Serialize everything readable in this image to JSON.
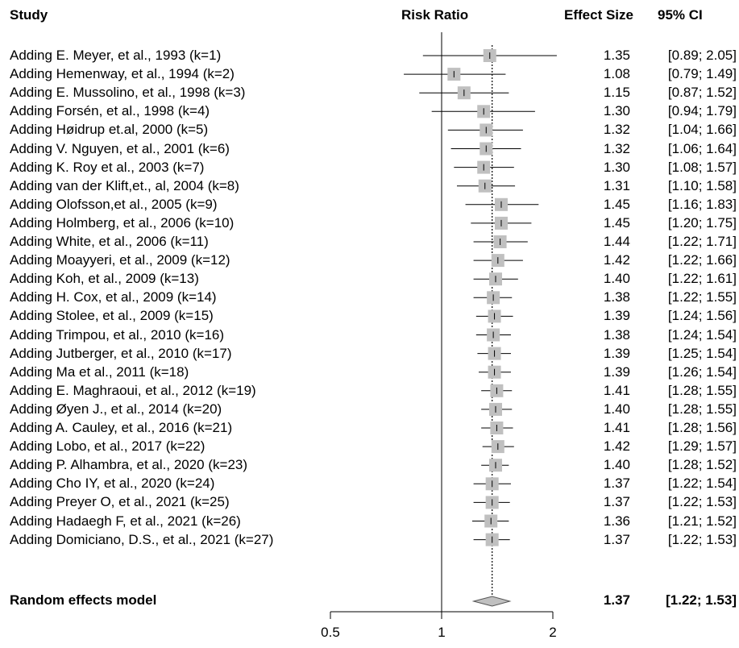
{
  "headers": {
    "study": "Study",
    "risk_ratio": "Risk Ratio",
    "effect_size": "Effect Size",
    "ci": "95% CI"
  },
  "chart_data": {
    "type": "forest",
    "scale": "log",
    "xlim": [
      0.5,
      2
    ],
    "x_ticks": [
      {
        "value": 0.5,
        "label": "0.5"
      },
      {
        "value": 1,
        "label": "1"
      },
      {
        "value": 2,
        "label": "2"
      }
    ],
    "null_line": 1,
    "pooled_line": 1.37,
    "studies": [
      {
        "label": "Adding E. Meyer, et al., 1993 (k=1)",
        "es": 1.35,
        "lo": 0.89,
        "hi": 2.05,
        "es_text": "1.35",
        "ci_text": "[0.89; 2.05]"
      },
      {
        "label": "Adding Hemenway, et al., 1994 (k=2)",
        "es": 1.08,
        "lo": 0.79,
        "hi": 1.49,
        "es_text": "1.08",
        "ci_text": "[0.79; 1.49]"
      },
      {
        "label": "Adding E. Mussolino, et al., 1998 (k=3)",
        "es": 1.15,
        "lo": 0.87,
        "hi": 1.52,
        "es_text": "1.15",
        "ci_text": "[0.87; 1.52]"
      },
      {
        "label": "Adding Forsén, et al., 1998 (k=4)",
        "es": 1.3,
        "lo": 0.94,
        "hi": 1.79,
        "es_text": "1.30",
        "ci_text": "[0.94; 1.79]"
      },
      {
        "label": "Adding Høidrup et.al, 2000 (k=5)",
        "es": 1.32,
        "lo": 1.04,
        "hi": 1.66,
        "es_text": "1.32",
        "ci_text": "[1.04; 1.66]"
      },
      {
        "label": "Adding V. Nguyen, et al., 2001 (k=6)",
        "es": 1.32,
        "lo": 1.06,
        "hi": 1.64,
        "es_text": "1.32",
        "ci_text": "[1.06; 1.64]"
      },
      {
        "label": "Adding K. Roy et al., 2003 (k=7)",
        "es": 1.3,
        "lo": 1.08,
        "hi": 1.57,
        "es_text": "1.30",
        "ci_text": "[1.08; 1.57]"
      },
      {
        "label": "Adding van der Klift,et., al, 2004 (k=8)",
        "es": 1.31,
        "lo": 1.1,
        "hi": 1.58,
        "es_text": "1.31",
        "ci_text": "[1.10; 1.58]"
      },
      {
        "label": "Adding Olofsson,et al., 2005 (k=9)",
        "es": 1.45,
        "lo": 1.16,
        "hi": 1.83,
        "es_text": "1.45",
        "ci_text": "[1.16; 1.83]"
      },
      {
        "label": "Adding Holmberg, et al., 2006 (k=10)",
        "es": 1.45,
        "lo": 1.2,
        "hi": 1.75,
        "es_text": "1.45",
        "ci_text": "[1.20; 1.75]"
      },
      {
        "label": "Adding White, et al., 2006 (k=11)",
        "es": 1.44,
        "lo": 1.22,
        "hi": 1.71,
        "es_text": "1.44",
        "ci_text": "[1.22; 1.71]"
      },
      {
        "label": "Adding Moayyeri, et al., 2009 (k=12)",
        "es": 1.42,
        "lo": 1.22,
        "hi": 1.66,
        "es_text": "1.42",
        "ci_text": "[1.22; 1.66]"
      },
      {
        "label": "Adding Koh, et al., 2009 (k=13)",
        "es": 1.4,
        "lo": 1.22,
        "hi": 1.61,
        "es_text": "1.40",
        "ci_text": "[1.22; 1.61]"
      },
      {
        "label": "Adding H. Cox, et al., 2009 (k=14)",
        "es": 1.38,
        "lo": 1.22,
        "hi": 1.55,
        "es_text": "1.38",
        "ci_text": "[1.22; 1.55]"
      },
      {
        "label": "Adding Stolee, et al., 2009 (k=15)",
        "es": 1.39,
        "lo": 1.24,
        "hi": 1.56,
        "es_text": "1.39",
        "ci_text": "[1.24; 1.56]"
      },
      {
        "label": "Adding Trimpou, et al., 2010 (k=16)",
        "es": 1.38,
        "lo": 1.24,
        "hi": 1.54,
        "es_text": "1.38",
        "ci_text": "[1.24; 1.54]"
      },
      {
        "label": "Adding Jutberger, et al., 2010 (k=17)",
        "es": 1.39,
        "lo": 1.25,
        "hi": 1.54,
        "es_text": "1.39",
        "ci_text": "[1.25; 1.54]"
      },
      {
        "label": "Adding Ma et al., 2011 (k=18)",
        "es": 1.39,
        "lo": 1.26,
        "hi": 1.54,
        "es_text": "1.39",
        "ci_text": "[1.26; 1.54]"
      },
      {
        "label": "Adding E. Maghraoui, et al., 2012 (k=19)",
        "es": 1.41,
        "lo": 1.28,
        "hi": 1.55,
        "es_text": "1.41",
        "ci_text": "[1.28; 1.55]"
      },
      {
        "label": "Adding Øyen J., et al., 2014 (k=20)",
        "es": 1.4,
        "lo": 1.28,
        "hi": 1.55,
        "es_text": "1.40",
        "ci_text": "[1.28; 1.55]"
      },
      {
        "label": "Adding A. Cauley, et al., 2016 (k=21)",
        "es": 1.41,
        "lo": 1.28,
        "hi": 1.56,
        "es_text": "1.41",
        "ci_text": "[1.28; 1.56]"
      },
      {
        "label": "Adding Lobo, et al., 2017 (k=22)",
        "es": 1.42,
        "lo": 1.29,
        "hi": 1.57,
        "es_text": "1.42",
        "ci_text": "[1.29; 1.57]"
      },
      {
        "label": "Adding P. Alhambra, et al., 2020 (k=23)",
        "es": 1.4,
        "lo": 1.28,
        "hi": 1.52,
        "es_text": "1.40",
        "ci_text": "[1.28; 1.52]"
      },
      {
        "label": "Adding Cho IY, et al., 2020 (k=24)",
        "es": 1.37,
        "lo": 1.22,
        "hi": 1.54,
        "es_text": "1.37",
        "ci_text": "[1.22; 1.54]"
      },
      {
        "label": "Adding Preyer O, et al., 2021 (k=25)",
        "es": 1.37,
        "lo": 1.22,
        "hi": 1.53,
        "es_text": "1.37",
        "ci_text": "[1.22; 1.53]"
      },
      {
        "label": "Adding Hadaegh F, et al., 2021 (k=26)",
        "es": 1.36,
        "lo": 1.21,
        "hi": 1.52,
        "es_text": "1.36",
        "ci_text": "[1.21; 1.52]"
      },
      {
        "label": "Adding Domiciano, D.S., et al., 2021 (k=27)",
        "es": 1.37,
        "lo": 1.22,
        "hi": 1.53,
        "es_text": "1.37",
        "ci_text": "[1.22; 1.53]"
      }
    ],
    "summary": {
      "label": "Random effects model",
      "es": 1.37,
      "lo": 1.22,
      "hi": 1.53,
      "es_text": "1.37",
      "ci_text": "[1.22; 1.53]"
    },
    "colors": {
      "box": "#c0c0c0",
      "diamond": "#c0c0c0",
      "line": "#000000"
    }
  }
}
